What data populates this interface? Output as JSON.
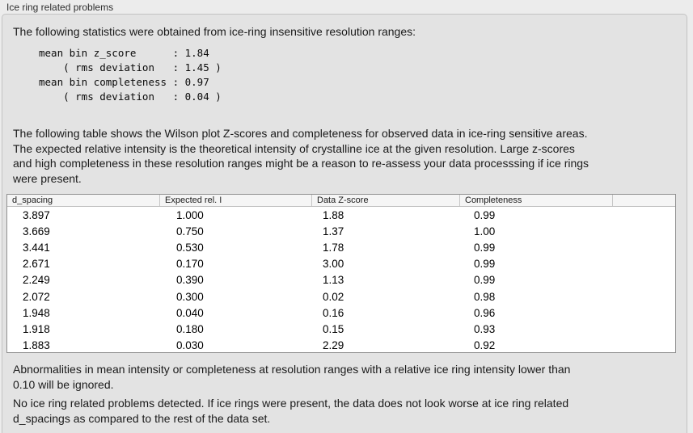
{
  "colors": {
    "window_bg": "#ececec",
    "panel_bg": "#e3e3e3",
    "panel_border": "#c2c2c2",
    "table_bg": "#ffffff",
    "table_border": "#8f8f8f",
    "table_header_bg": "#f5f5f5",
    "text": "#1a1a1a"
  },
  "section": {
    "title": "Ice ring related problems"
  },
  "content": {
    "intro": "The following statistics were obtained from ice-ring insensitive resolution ranges:",
    "stats_block": "mean bin z_score      : 1.84\n    ( rms deviation   : 1.45 )\nmean bin completeness : 0.97\n    ( rms deviation   : 0.04 )",
    "table_description": "The following table shows the Wilson plot Z-scores and completeness for observed data in ice-ring sensitive areas.\nThe expected relative intensity is the theoretical intensity of crystalline ice at the given resolution. Large z-scores\nand high completeness in these resolution ranges might be a reason to re-assess your data processsing if ice rings\nwere present.",
    "ignore_note": "Abnormalities in mean intensity or completeness at resolution ranges with a relative ice ring intensity lower than\n0.10 will be ignored.",
    "conclusion": "No ice ring related problems detected. If ice rings were present, the data does not look worse at ice ring related\nd_spacings as compared to the rest of the data set."
  },
  "table": {
    "columns": [
      "d_spacing",
      "Expected rel. I",
      "Data Z-score",
      "Completeness"
    ],
    "rows": [
      [
        "3.897",
        "1.000",
        "1.88",
        "0.99"
      ],
      [
        "3.669",
        "0.750",
        "1.37",
        "1.00"
      ],
      [
        "3.441",
        "0.530",
        "1.78",
        "0.99"
      ],
      [
        "2.671",
        "0.170",
        "3.00",
        "0.99"
      ],
      [
        "2.249",
        "0.390",
        "1.13",
        "0.99"
      ],
      [
        "2.072",
        "0.300",
        "0.02",
        "0.98"
      ],
      [
        "1.948",
        "0.040",
        "0.16",
        "0.96"
      ],
      [
        "1.918",
        "0.180",
        "0.15",
        "0.93"
      ],
      [
        "1.883",
        "0.030",
        "2.29",
        "0.92"
      ]
    ]
  }
}
